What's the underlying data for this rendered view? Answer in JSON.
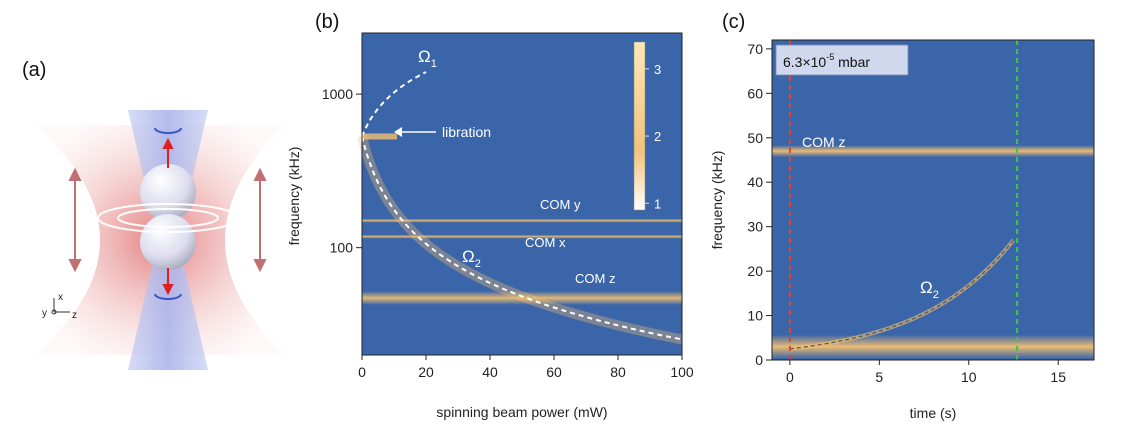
{
  "panel_a": {
    "label": "(a)",
    "axes": {
      "x": "x",
      "y": "y",
      "z": "z"
    }
  },
  "panel_b": {
    "label": "(b)",
    "omega1": "Ω",
    "omega1_sub": "1",
    "omega2": "Ω",
    "omega2_sub": "2",
    "libration": "libration",
    "com_y": "COM y",
    "com_x": "COM x",
    "com_z": "COM z"
  },
  "panel_c": {
    "label": "(c)",
    "pressure_base": "6.3×10",
    "pressure_exp": "-5",
    "pressure_unit": " mbar",
    "com_z": "COM z",
    "omega2": "Ω",
    "omega2_sub": "2"
  },
  "chart_data": [
    {
      "type": "heatmap",
      "title": "",
      "xlabel": "spinning beam power (mW)",
      "ylabel": "frequency (kHz)",
      "xlim": [
        0,
        100
      ],
      "ylim": [
        20,
        2500
      ],
      "yscale": "log",
      "x_ticks": [
        "0",
        "20",
        "40",
        "60",
        "80",
        "100"
      ],
      "y_ticks": [
        "100",
        "1000"
      ],
      "colorbar": {
        "ticks": [
          "1",
          "2",
          "3"
        ],
        "range": [
          0.9,
          3.4
        ]
      },
      "lines": [
        {
          "name": "COM y",
          "y": 150
        },
        {
          "name": "COM x",
          "y": 118
        },
        {
          "name": "COM z",
          "y": 47
        }
      ],
      "libration_point": {
        "x": 3,
        "y": 530
      }
    },
    {
      "type": "heatmap",
      "title": "",
      "xlabel": "time (s)",
      "ylabel": "frequency (kHz)",
      "xlim": [
        -1,
        17
      ],
      "ylim": [
        0,
        72
      ],
      "x_ticks": [
        "0",
        "5",
        "10",
        "15"
      ],
      "y_ticks": [
        "0",
        "10",
        "20",
        "30",
        "40",
        "50",
        "60",
        "70"
      ],
      "markers": [
        {
          "name": "start",
          "x": 0,
          "color": "#e8402a"
        },
        {
          "name": "stop",
          "x": 12.7,
          "color": "#3ec83e"
        }
      ],
      "lines": [
        {
          "name": "COM z",
          "y": 47
        },
        {
          "name": "low band",
          "y": 3
        }
      ],
      "omega2_curve": {
        "t0": 0,
        "t1": 12.5,
        "f0": 2.5,
        "f1": 27
      }
    }
  ]
}
